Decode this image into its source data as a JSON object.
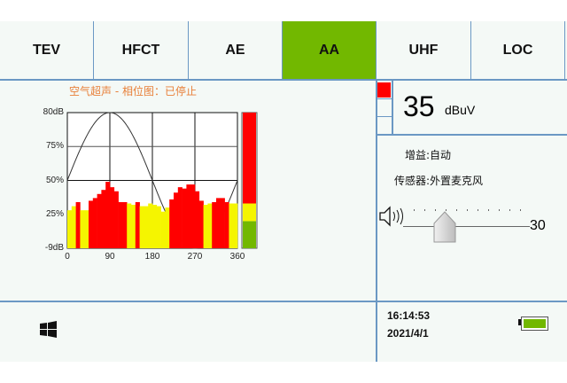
{
  "tabs": [
    {
      "label": "TEV"
    },
    {
      "label": "HFCT"
    },
    {
      "label": "AE"
    },
    {
      "label": "AA",
      "active": true
    },
    {
      "label": "UHF"
    },
    {
      "label": "LOC"
    }
  ],
  "colors": {
    "accent": "#72b800",
    "divider": "#6b98c4",
    "title": "#e8803a",
    "red": "#ff0000",
    "yellow": "#f5f500",
    "green": "#72b800"
  },
  "chart_title": "空气超声 - 相位图：已停止",
  "chart_data": {
    "type": "bar",
    "title": "空气超声 - 相位图：已停止",
    "xlim": [
      0,
      360
    ],
    "x_ticks": [
      "0",
      "90",
      "180",
      "270",
      "360"
    ],
    "y_ticks": [
      "80dB",
      "75%",
      "50%",
      "25%",
      "-9dB"
    ],
    "ylim_percent": [
      0,
      100
    ],
    "bin_width_deg": 9,
    "values_percent": [
      28,
      31,
      34,
      28,
      28,
      35,
      37,
      40,
      43,
      49,
      45,
      42,
      34,
      34,
      33,
      32,
      34,
      31,
      31,
      33,
      32,
      31,
      27,
      30,
      36,
      41,
      45,
      44,
      47,
      47,
      42,
      35,
      32,
      33,
      34,
      37,
      37,
      34,
      33,
      33
    ],
    "bar_colors": [
      "y",
      "y",
      "r",
      "y",
      "y",
      "r",
      "r",
      "r",
      "r",
      "r",
      "r",
      "r",
      "r",
      "r",
      "y",
      "y",
      "r",
      "y",
      "y",
      "y",
      "y",
      "y",
      "y",
      "y",
      "r",
      "r",
      "r",
      "r",
      "r",
      "r",
      "r",
      "r",
      "y",
      "y",
      "r",
      "r",
      "r",
      "r",
      "y",
      "y"
    ],
    "reference_curve": "sine",
    "grid": true
  },
  "level_meter": {
    "segments": [
      {
        "color": "#72b800",
        "fraction": 0.2
      },
      {
        "color": "#f5f500",
        "fraction": 0.13
      },
      {
        "color": "#ff0000",
        "fraction": 0.67
      }
    ]
  },
  "reading": {
    "value": "35",
    "unit": "dBuV"
  },
  "indicator": {
    "active_color": "#ff0000"
  },
  "gain": "增益:自动",
  "sensor": "传感器:外置麦克风",
  "volume": {
    "value": "30",
    "fraction": 0.33
  },
  "status": {
    "time": "16:14:53",
    "date": "2021/4/1",
    "battery_fraction": 1.0
  }
}
